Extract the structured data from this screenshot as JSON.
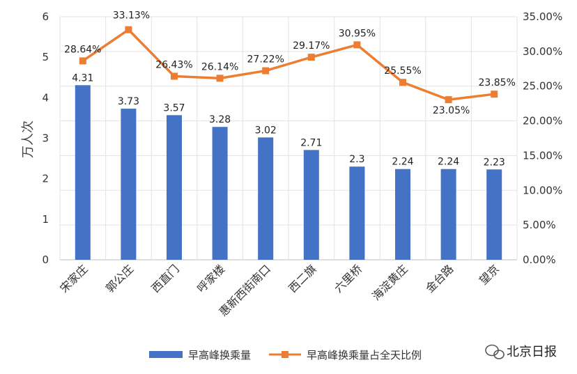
{
  "chart_data": {
    "type": "bar",
    "categories": [
      "宋家庄",
      "郭公庄",
      "西直门",
      "呼家楼",
      "惠新西街南口",
      "西二旗",
      "六里桥",
      "海淀黄庄",
      "金台路",
      "望京"
    ],
    "series": [
      {
        "name": "早高峰换乘量",
        "type": "bar",
        "axis": "left",
        "values": [
          4.31,
          3.73,
          3.57,
          3.28,
          3.02,
          2.71,
          2.3,
          2.24,
          2.24,
          2.23
        ],
        "labels": [
          "4.31",
          "3.73",
          "3.57",
          "3.28",
          "3.02",
          "2.71",
          "2.3",
          "2.24",
          "2.24",
          "2.23"
        ],
        "color": "#4472C4"
      },
      {
        "name": "早高峰换乘量占全天比例",
        "type": "line",
        "axis": "right",
        "values": [
          28.64,
          33.13,
          26.43,
          26.14,
          27.22,
          29.17,
          30.95,
          25.55,
          23.05,
          23.85
        ],
        "labels": [
          "28.64%",
          "33.13%",
          "26.43%",
          "26.14%",
          "27.22%",
          "29.17%",
          "30.95%",
          "25.55%",
          "23.05%",
          "23.85%"
        ],
        "color": "#ED7D31"
      }
    ],
    "ylabel": "万人次",
    "ylim": [
      0,
      6
    ],
    "yticks": [
      "0",
      "1",
      "2",
      "3",
      "4",
      "5",
      "6"
    ],
    "y2lim": [
      0,
      35
    ],
    "y2ticks": [
      "0.00%",
      "5.00%",
      "10.00%",
      "15.00%",
      "20.00%",
      "25.00%",
      "30.00%",
      "35.00%"
    ],
    "grid": true,
    "legend_position": "bottom"
  },
  "watermark": "北京日报"
}
